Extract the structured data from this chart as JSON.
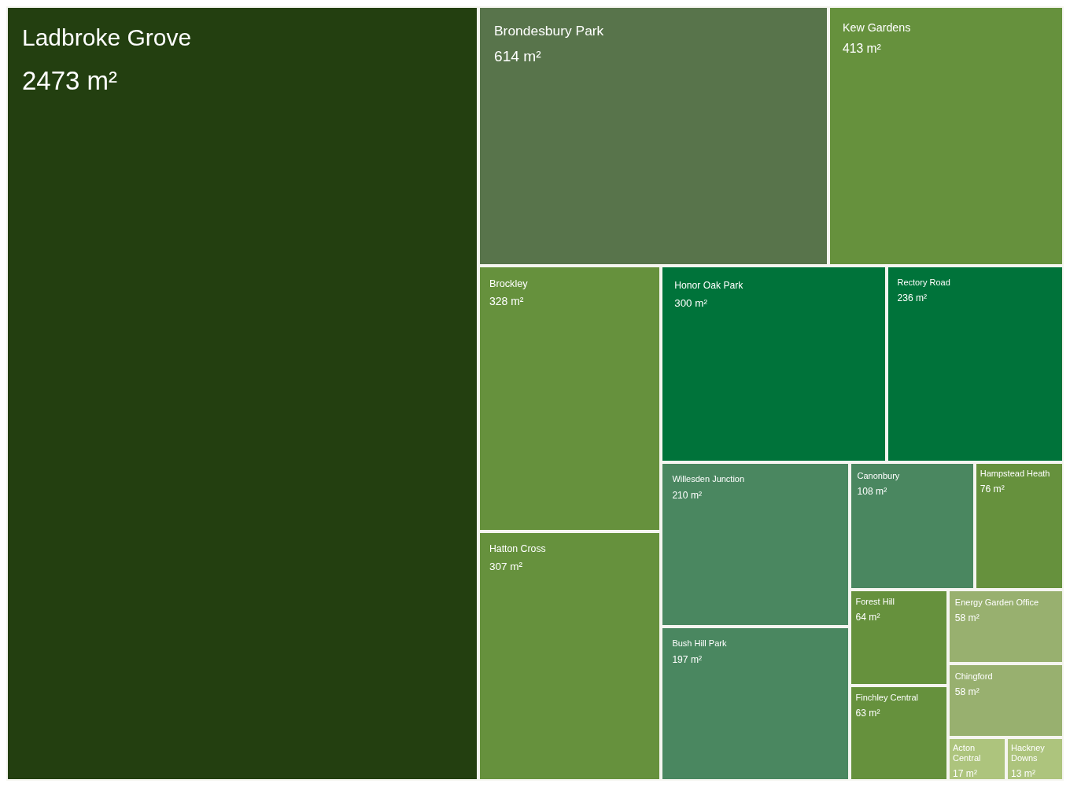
{
  "chart_data": {
    "type": "other",
    "categories": [
      "Ladbroke Grove",
      "Brondesbury Park",
      "Kew Gardens",
      "Brockley",
      "Hatton Cross",
      "Honor Oak Park",
      "Rectory Road",
      "Willesden Junction",
      "Bush Hill Park",
      "Canonbury",
      "Hampstead Heath",
      "Forest Hill",
      "Finchley Central",
      "Energy Garden Office",
      "Chingford",
      "Acton Central",
      "Hackney Downs"
    ],
    "values": [
      2473,
      614,
      413,
      328,
      307,
      300,
      236,
      210,
      197,
      108,
      76,
      64,
      63,
      58,
      58,
      17,
      13
    ],
    "value_labels": [
      "2473 m²",
      "614 m²",
      "413 m²",
      "328 m²",
      "307 m²",
      "300 m²",
      "236 m²",
      "210 m²",
      "197 m²",
      "108 m²",
      "76 m²",
      "64 m²",
      "63 m²",
      "58 m²",
      "58 m²",
      "17 m²",
      "13 m²"
    ],
    "colors": [
      "#233f10",
      "#58744b",
      "#66913d",
      "#66913d",
      "#66913d",
      "#00733a",
      "#00733a",
      "#4a8760",
      "#4a8760",
      "#4a8760",
      "#66913d",
      "#66913d",
      "#66913d",
      "#98b06f",
      "#98b06f",
      "#adc47d",
      "#adc47d"
    ]
  }
}
